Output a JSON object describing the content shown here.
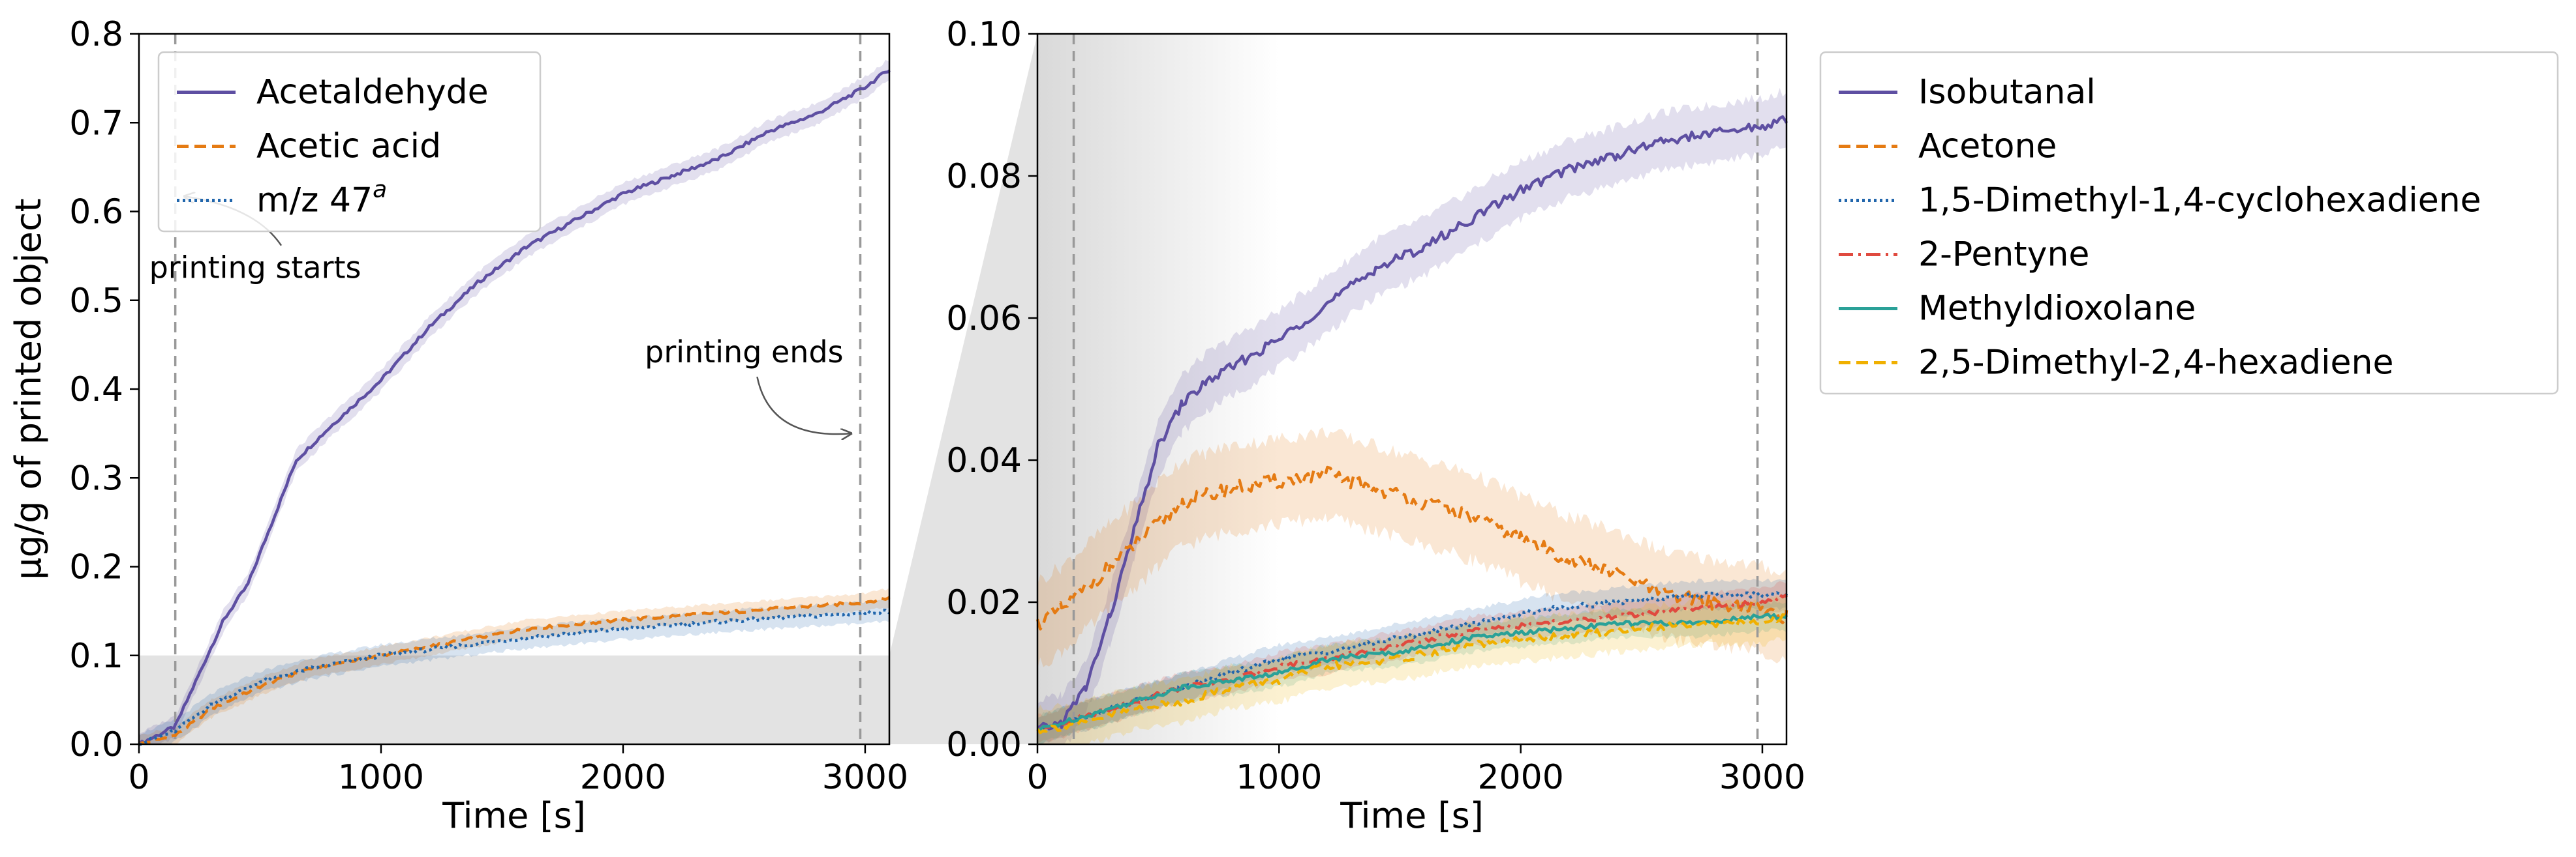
{
  "chart_data": [
    {
      "type": "line",
      "panel": "left",
      "xlabel": "Time [s]",
      "ylabel": "µg/g of printed object",
      "xlim": [
        0,
        3100
      ],
      "ylim": [
        0,
        0.8
      ],
      "xticks": [
        "0",
        "1000",
        "2000",
        "3000"
      ],
      "yticks": [
        "0.0",
        "0.1",
        "0.2",
        "0.3",
        "0.4",
        "0.5",
        "0.6",
        "0.7",
        "0.8"
      ],
      "legend_position": "top-left",
      "vlines": [
        150,
        2980
      ],
      "zoom_region": [
        0,
        0.1
      ],
      "annotations": [
        {
          "text": "printing starts",
          "label_at": [
            480,
            0.525
          ],
          "arrow_to": [
            150,
            0.62
          ]
        },
        {
          "text": "printing ends",
          "label_at": [
            2500,
            0.43
          ],
          "arrow_to": [
            2980,
            0.35
          ]
        }
      ],
      "series": [
        {
          "name": "Acetaldehyde",
          "legend_label": "Acetaldehyde",
          "color": "#5e4fa2",
          "dash": "solid",
          "x": [
            0,
            150,
            250,
            350,
            450,
            550,
            650,
            800,
            1000,
            1200,
            1400,
            1600,
            1800,
            2000,
            2200,
            2400,
            2600,
            2800,
            3000,
            3100
          ],
          "y": [
            0.0,
            0.02,
            0.08,
            0.14,
            0.18,
            0.25,
            0.32,
            0.36,
            0.41,
            0.47,
            0.52,
            0.56,
            0.59,
            0.62,
            0.64,
            0.66,
            0.69,
            0.71,
            0.74,
            0.76
          ],
          "band": 0.012
        },
        {
          "name": "Acetic acid",
          "legend_label": "Acetic acid",
          "color": "#e57b13",
          "dash": "dashed",
          "x": [
            0,
            150,
            300,
            500,
            700,
            1000,
            1300,
            1600,
            2000,
            2500,
            3000,
            3100
          ],
          "y": [
            0.0,
            0.01,
            0.04,
            0.065,
            0.085,
            0.1,
            0.115,
            0.13,
            0.14,
            0.15,
            0.16,
            0.165
          ],
          "band": 0.01
        },
        {
          "name": "m/z 47",
          "legend_label": "m/z 47",
          "legend_superscript": "a",
          "color": "#2166ac",
          "dash": "dotted",
          "x": [
            0,
            150,
            300,
            500,
            700,
            1000,
            1300,
            1600,
            2000,
            2500,
            3000,
            3100
          ],
          "y": [
            0.0,
            0.015,
            0.045,
            0.07,
            0.085,
            0.1,
            0.11,
            0.12,
            0.13,
            0.14,
            0.148,
            0.15
          ],
          "band": 0.012
        }
      ]
    },
    {
      "type": "line",
      "panel": "right",
      "xlabel": "Time [s]",
      "ylabel": "",
      "xlim": [
        0,
        3100
      ],
      "ylim": [
        0,
        0.1
      ],
      "xticks": [
        "0",
        "1000",
        "2000",
        "3000"
      ],
      "yticks": [
        "0.00",
        "0.02",
        "0.04",
        "0.06",
        "0.08",
        "0.10"
      ],
      "legend_position": "outside-right",
      "vlines": [
        150,
        2980
      ],
      "series": [
        {
          "name": "Isobutanal",
          "legend_label": "Isobutanal",
          "color": "#5e4fa2",
          "dash": "solid",
          "x": [
            0,
            100,
            200,
            300,
            400,
            500,
            600,
            700,
            800,
            1000,
            1200,
            1400,
            1600,
            1800,
            2000,
            2200,
            2400,
            2600,
            2800,
            3000,
            3100
          ],
          "y": [
            0.002,
            0.003,
            0.008,
            0.018,
            0.03,
            0.042,
            0.048,
            0.051,
            0.053,
            0.057,
            0.062,
            0.067,
            0.07,
            0.074,
            0.078,
            0.081,
            0.083,
            0.085,
            0.086,
            0.087,
            0.088
          ],
          "band": 0.004
        },
        {
          "name": "Acetone",
          "legend_label": "Acetone",
          "color": "#e57b13",
          "dash": "dashed",
          "x": [
            0,
            100,
            200,
            300,
            400,
            500,
            600,
            700,
            800,
            1000,
            1200,
            1400,
            1600,
            1800,
            2000,
            2200,
            2400,
            2600,
            2800,
            3000,
            3100
          ],
          "y": [
            0.017,
            0.019,
            0.022,
            0.025,
            0.028,
            0.031,
            0.034,
            0.035,
            0.036,
            0.037,
            0.038,
            0.036,
            0.034,
            0.032,
            0.029,
            0.026,
            0.024,
            0.021,
            0.02,
            0.019,
            0.018
          ],
          "band": 0.006
        },
        {
          "name": "1,5-Dimethyl-1,4-cyclohexadiene",
          "legend_label": "1,5-Dimethyl-1,4-cyclohexadiene",
          "color": "#2166ac",
          "dash": "dotted",
          "x": [
            0,
            200,
            400,
            600,
            800,
            1000,
            1200,
            1500,
            1800,
            2100,
            2400,
            2700,
            3000,
            3100
          ],
          "y": [
            0.002,
            0.004,
            0.006,
            0.008,
            0.01,
            0.012,
            0.013,
            0.015,
            0.017,
            0.019,
            0.02,
            0.021,
            0.021,
            0.021
          ],
          "band": 0.002
        },
        {
          "name": "2-Pentyne",
          "legend_label": "2-Pentyne",
          "color": "#e04a3f",
          "dash": "dashdot",
          "x": [
            0,
            200,
            400,
            600,
            800,
            1000,
            1200,
            1500,
            1800,
            2100,
            2400,
            2700,
            3000,
            3100
          ],
          "y": [
            0.002,
            0.004,
            0.006,
            0.008,
            0.009,
            0.011,
            0.012,
            0.014,
            0.016,
            0.017,
            0.018,
            0.019,
            0.02,
            0.021
          ],
          "band": 0.002
        },
        {
          "name": "Methyldioxolane",
          "legend_label": "Methyldioxolane",
          "color": "#2aa198",
          "dash": "solid",
          "x": [
            0,
            200,
            400,
            600,
            800,
            1000,
            1200,
            1500,
            1800,
            2100,
            2400,
            2700,
            3000,
            3100
          ],
          "y": [
            0.002,
            0.004,
            0.006,
            0.008,
            0.009,
            0.01,
            0.012,
            0.013,
            0.015,
            0.016,
            0.017,
            0.017,
            0.018,
            0.018
          ],
          "band": 0.002
        },
        {
          "name": "2,5-Dimethyl-2,4-hexadiene",
          "legend_label": "2,5-Dimethyl-2,4-hexadiene",
          "color": "#f0b000",
          "dash": "dashed",
          "x": [
            0,
            200,
            400,
            600,
            800,
            1000,
            1200,
            1500,
            1800,
            2100,
            2400,
            2700,
            3000,
            3100
          ],
          "y": [
            0.002,
            0.003,
            0.005,
            0.006,
            0.008,
            0.009,
            0.011,
            0.012,
            0.014,
            0.015,
            0.016,
            0.017,
            0.017,
            0.018
          ],
          "band": 0.003
        }
      ]
    }
  ]
}
